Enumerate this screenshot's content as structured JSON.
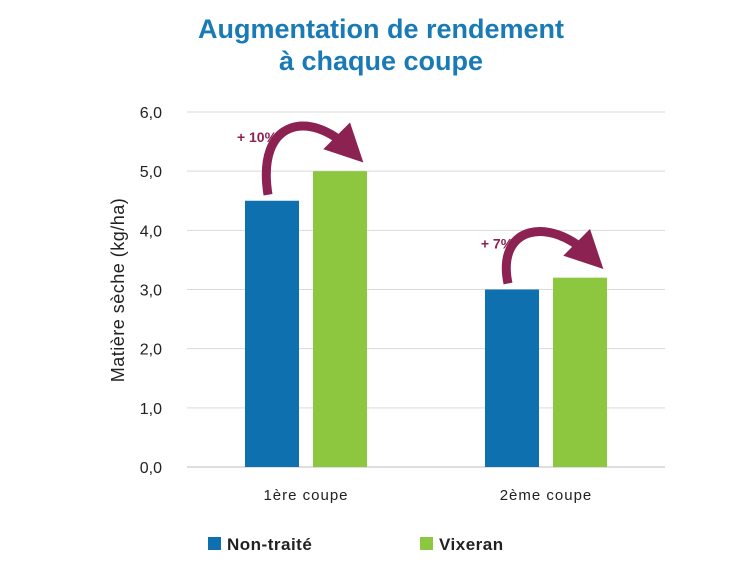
{
  "chart_data": {
    "type": "bar",
    "title": [
      "Augmentation de rendement",
      "à chaque coupe"
    ],
    "ylabel": "Matière sèche (kg/ha)",
    "xlabel": "",
    "ylim": [
      0,
      6
    ],
    "yticks": [
      "0,0",
      "1,0",
      "2,0",
      "3,0",
      "4,0",
      "5,0",
      "6,0"
    ],
    "categories": [
      "1ère coupe",
      "2ème coupe"
    ],
    "series": [
      {
        "name": "Non-traité",
        "color": "#0f70b0",
        "values": [
          4.5,
          3.0
        ]
      },
      {
        "name": "Vixeran",
        "color": "#8dc63f",
        "values": [
          5.0,
          3.2
        ]
      }
    ],
    "annotations": [
      {
        "text": "+ 10%",
        "category": "1ère coupe"
      },
      {
        "text": "+ 7%",
        "category": "2ème coupe"
      }
    ],
    "annotation_color": "#8b2252",
    "grid": true,
    "legend_position": "bottom"
  }
}
